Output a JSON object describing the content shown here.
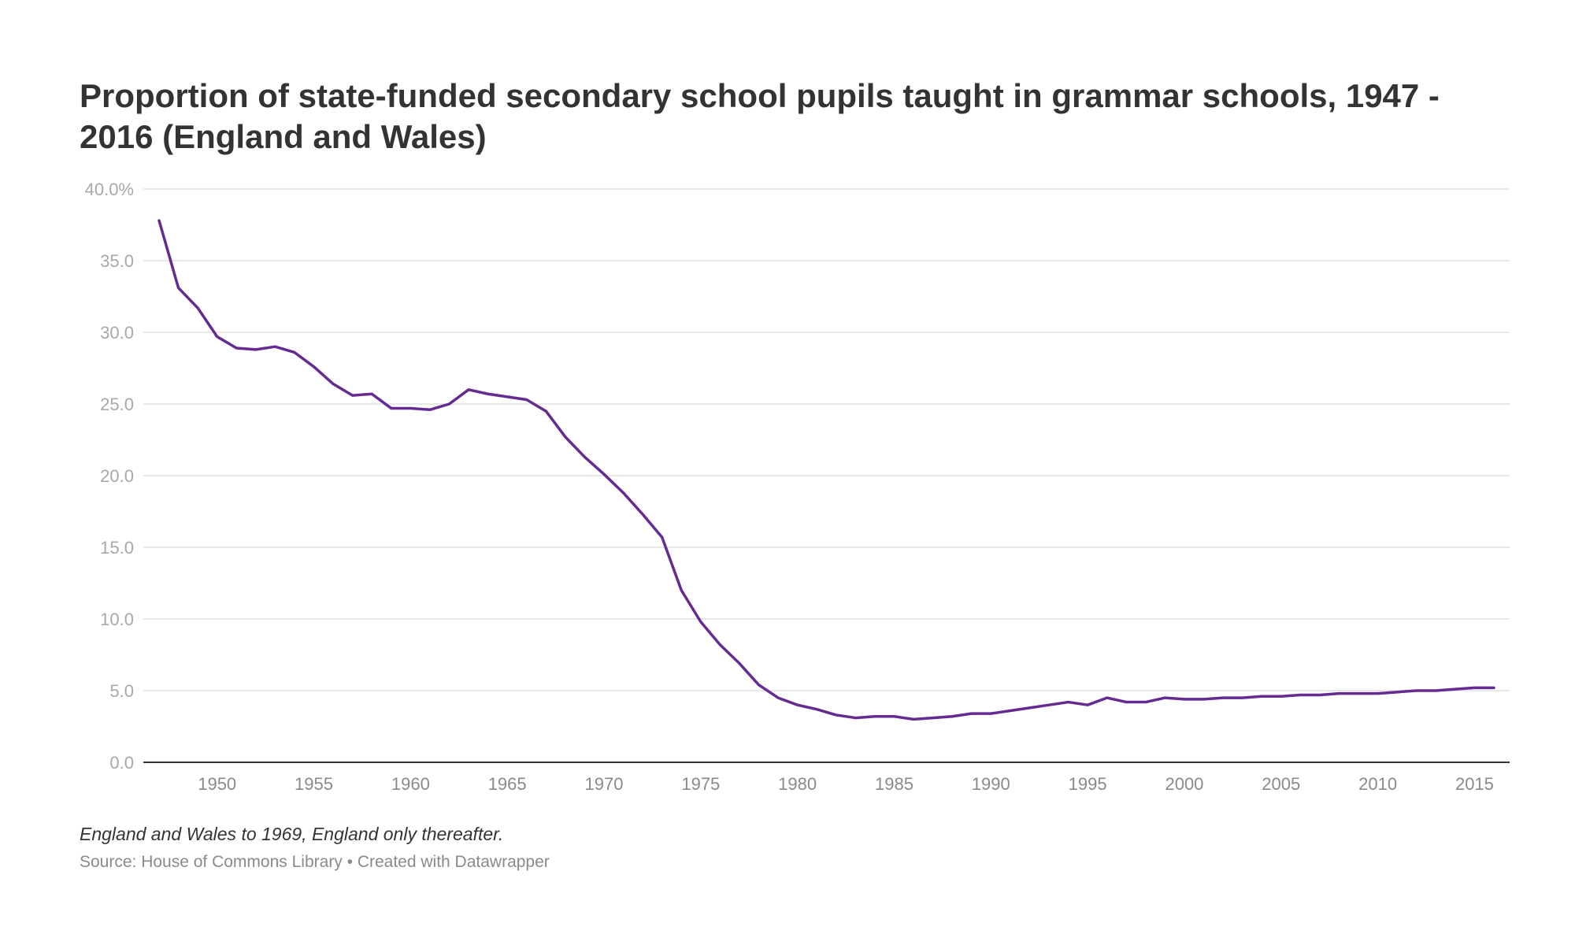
{
  "title": "Proportion of state-funded secondary school pupils taught in grammar schools, 1947 - 2016 (England and Wales)",
  "note": "England and Wales to 1969, England only thereafter.",
  "source": "Source: House of Commons Library • Created with Datawrapper",
  "colors": {
    "line": "#652b91",
    "grid": "#e0e0e0",
    "baseline": "#333333",
    "y_tick_label": "#a8a8a8",
    "x_tick_label": "#8a8a8a",
    "title": "#333333"
  },
  "chart_data": {
    "type": "line",
    "title": "Proportion of state-funded secondary school pupils taught in grammar schools, 1947 - 2016 (England and Wales)",
    "xlabel": "",
    "ylabel": "",
    "xlim": [
      1947,
      2016
    ],
    "ylim": [
      0,
      40
    ],
    "grid": true,
    "legend": "none",
    "x_ticks": [
      "1950",
      "1955",
      "1960",
      "1965",
      "1970",
      "1975",
      "1980",
      "1985",
      "1990",
      "1995",
      "2000",
      "2005",
      "2010",
      "2015"
    ],
    "y_ticks": [
      "0.0",
      "5.0",
      "10.0",
      "15.0",
      "20.0",
      "25.0",
      "30.0",
      "35.0",
      "40.0%"
    ],
    "series": [
      {
        "x": [
          1947,
          1948,
          1949,
          1950,
          1951,
          1952,
          1953,
          1954,
          1955,
          1956,
          1957,
          1958,
          1959,
          1960,
          1961,
          1962,
          1963,
          1964,
          1965,
          1966,
          1967,
          1968,
          1969,
          1970,
          1971,
          1972,
          1973,
          1974,
          1975,
          1976,
          1977,
          1978,
          1979,
          1980,
          1981,
          1982,
          1983,
          1984,
          1985,
          1986,
          1987,
          1988,
          1989,
          1990,
          1991,
          1992,
          1993,
          1994,
          1995,
          1996,
          1997,
          1998,
          1999,
          2000,
          2001,
          2002,
          2003,
          2004,
          2005,
          2006,
          2007,
          2008,
          2009,
          2010,
          2011,
          2012,
          2013,
          2014,
          2015,
          2016
        ],
        "values": [
          37.8,
          33.1,
          31.7,
          29.7,
          28.9,
          28.8,
          29.0,
          28.6,
          27.6,
          26.4,
          25.6,
          25.7,
          24.7,
          24.7,
          24.6,
          25.0,
          26.0,
          25.7,
          25.5,
          25.3,
          24.5,
          22.7,
          21.3,
          20.1,
          18.8,
          17.3,
          15.7,
          12.0,
          9.8,
          8.2,
          6.9,
          5.4,
          4.5,
          4.0,
          3.7,
          3.3,
          3.1,
          3.2,
          3.2,
          3.0,
          3.1,
          3.2,
          3.4,
          3.4,
          3.6,
          3.8,
          4.0,
          4.2,
          4.0,
          4.5,
          4.2,
          4.2,
          4.5,
          4.4,
          4.4,
          4.5,
          4.5,
          4.6,
          4.6,
          4.7,
          4.7,
          4.8,
          4.8,
          4.8,
          4.9,
          5.0,
          5.0,
          5.1,
          5.2,
          5.2
        ]
      }
    ]
  }
}
